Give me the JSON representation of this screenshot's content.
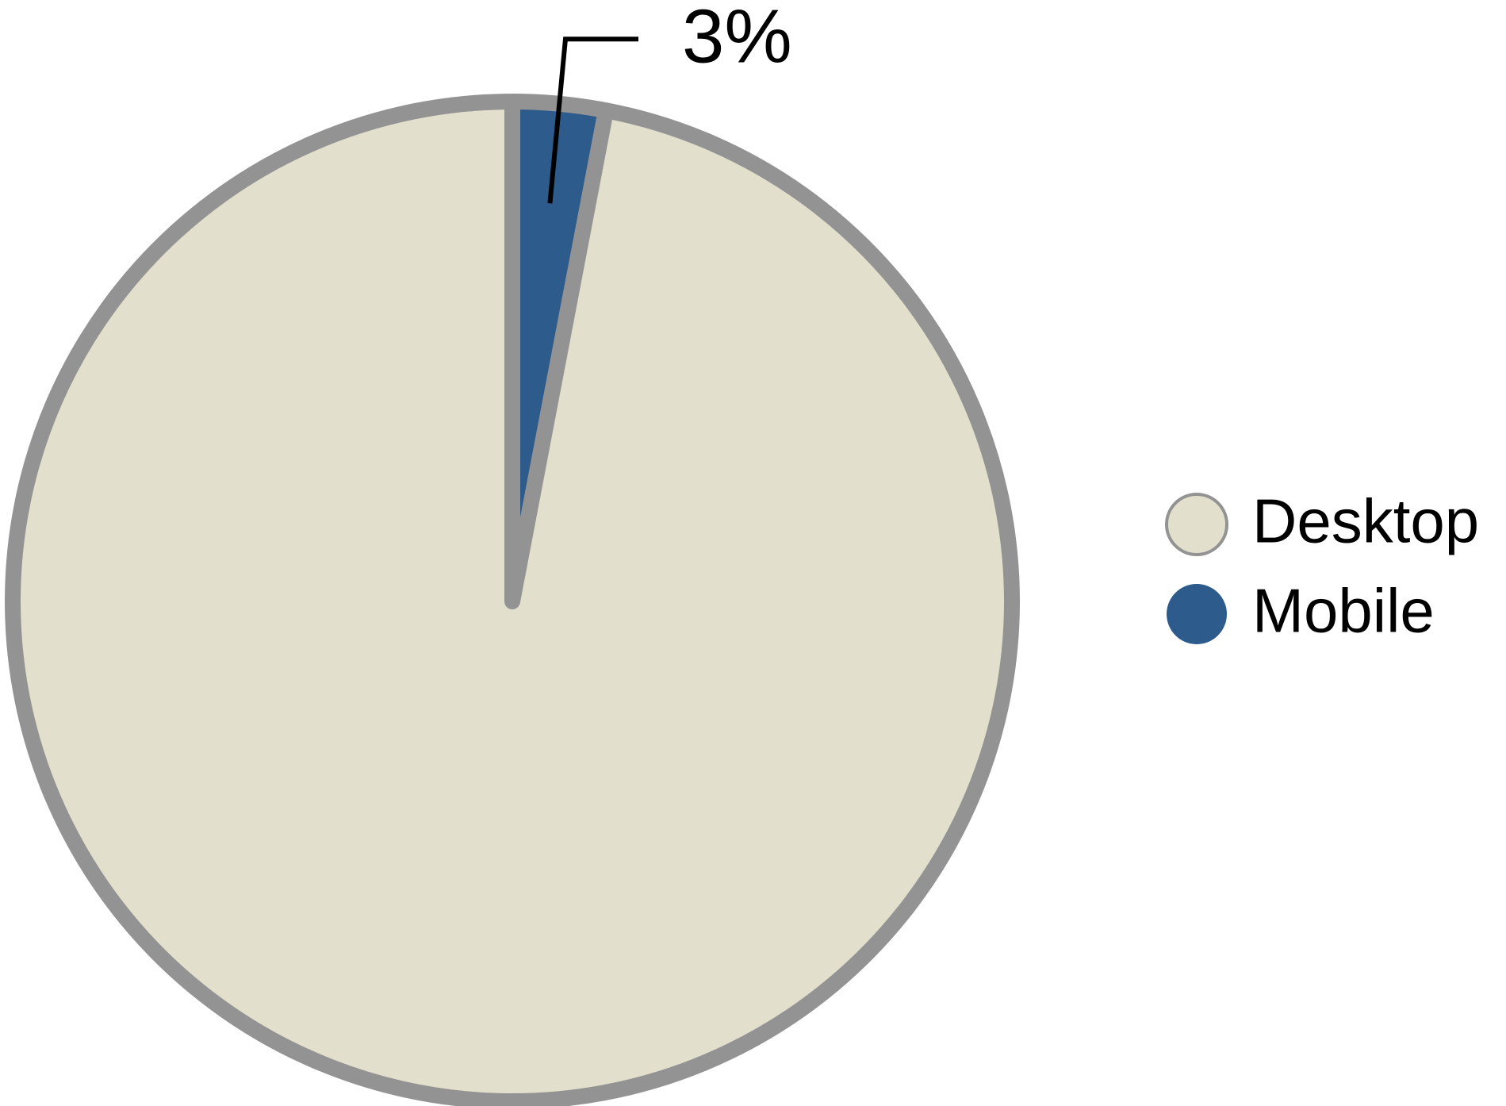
{
  "chart_data": {
    "type": "pie",
    "categories": [
      "Desktop",
      "Mobile"
    ],
    "values": [
      97,
      3
    ],
    "value_labels": [
      null,
      "3%"
    ],
    "colors": [
      "#e2dfcc",
      "#2c5b8c"
    ],
    "edge_color": "#939393",
    "legend": "right"
  }
}
